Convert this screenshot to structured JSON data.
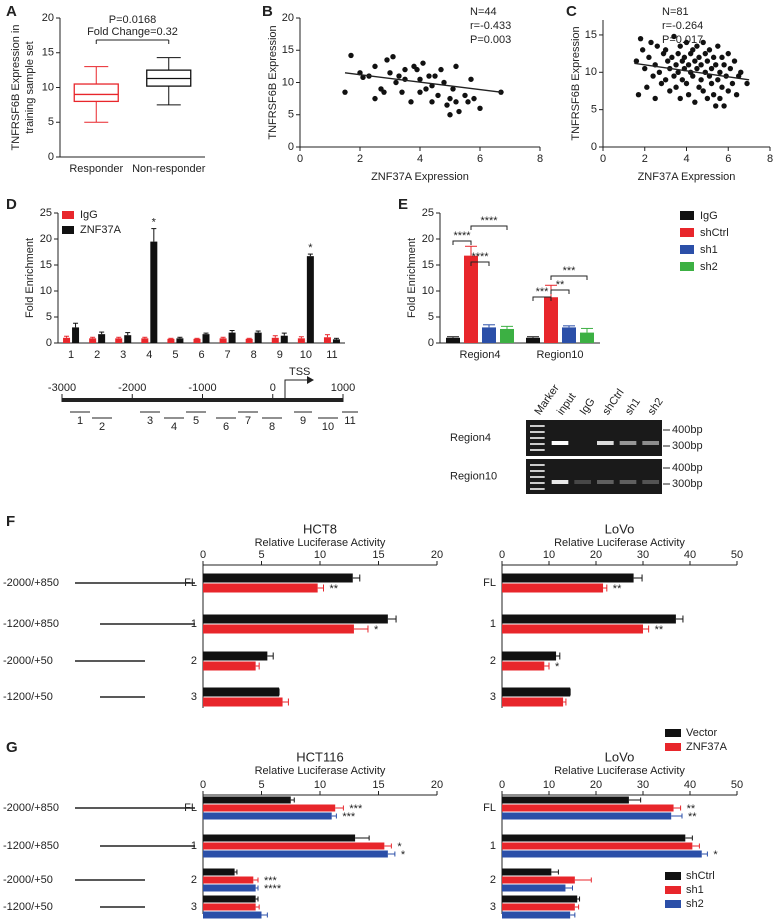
{
  "chart_data": [
    {
      "type": "box",
      "panel": "A",
      "ylabel": [
        "TNFRSF6B Expression in",
        "training sample set"
      ],
      "annotations": [
        "P=0.0168",
        "Fold Change=0.32"
      ],
      "categories": [
        "Responder",
        "Non-responder"
      ],
      "colors": [
        "#e8262b",
        "#111111"
      ],
      "min": [
        5,
        7.5
      ],
      "q1": [
        8,
        10.2
      ],
      "median": [
        9,
        11.3
      ],
      "q3": [
        10.5,
        12.5
      ],
      "max": [
        13,
        14.3
      ],
      "ylim": [
        0,
        20
      ],
      "yticks": [
        0,
        5,
        10,
        15,
        20
      ]
    },
    {
      "type": "scatter",
      "panel": "B",
      "xlabel": "ZNF37A Expression",
      "ylabel": "TNFRSF6B Expression",
      "stats": [
        "N=44",
        "r=-0.433",
        "P=0.003"
      ],
      "x": [
        1.5,
        1.7,
        2,
        2.1,
        2.3,
        2.5,
        2.5,
        2.7,
        2.8,
        2.9,
        3,
        3.1,
        3.2,
        3.3,
        3.4,
        3.5,
        3.5,
        3.7,
        3.8,
        3.9,
        4,
        4,
        4.1,
        4.2,
        4.3,
        4.4,
        4.4,
        4.5,
        4.6,
        4.7,
        4.8,
        4.9,
        5,
        5,
        5.1,
        5.2,
        5.2,
        5.3,
        5.5,
        5.6,
        5.7,
        5.8,
        6,
        6.7
      ],
      "values": [
        8.5,
        14.2,
        11.5,
        10.8,
        11,
        7.5,
        12.5,
        9,
        8.5,
        13.5,
        11.5,
        14,
        10,
        11,
        8.5,
        12,
        10.5,
        7,
        12.5,
        12,
        8.5,
        10.5,
        13,
        9,
        11,
        7,
        9.5,
        11,
        8,
        12,
        10,
        6.5,
        7.5,
        5,
        9,
        12.5,
        7,
        5.5,
        8,
        7,
        10.5,
        7.5,
        6,
        8.5
      ],
      "fit_x": [
        1.5,
        6.7
      ],
      "fit_y": [
        11.5,
        8.5
      ],
      "xlim": [
        0,
        8
      ],
      "xticks": [
        0,
        2,
        4,
        6,
        8
      ],
      "ylim": [
        0,
        20
      ],
      "yticks": [
        0,
        5,
        10,
        15,
        20
      ]
    },
    {
      "type": "scatter",
      "panel": "C",
      "xlabel": "ZNF37A Expression",
      "ylabel": "TNFRSF6B Expression",
      "stats": [
        "N=81",
        "r=-0.264",
        "P=0.017"
      ],
      "x": [
        1.6,
        1.7,
        1.8,
        1.9,
        2,
        2.1,
        2.2,
        2.3,
        2.4,
        2.5,
        2.5,
        2.6,
        2.7,
        2.8,
        2.9,
        3,
        3,
        3.1,
        3.2,
        3.2,
        3.3,
        3.4,
        3.4,
        3.5,
        3.5,
        3.6,
        3.6,
        3.7,
        3.7,
        3.8,
        3.8,
        3.9,
        3.9,
        4,
        4,
        4.1,
        4.1,
        4.2,
        4.2,
        4.3,
        4.3,
        4.4,
        4.4,
        4.5,
        4.5,
        4.6,
        4.6,
        4.7,
        4.7,
        4.8,
        4.8,
        4.9,
        4.9,
        5,
        5,
        5.1,
        5.1,
        5.2,
        5.2,
        5.3,
        5.3,
        5.4,
        5.4,
        5.5,
        5.5,
        5.6,
        5.6,
        5.7,
        5.7,
        5.8,
        5.8,
        5.9,
        6,
        6,
        6.1,
        6.2,
        6.3,
        6.4,
        6.5,
        6.6,
        6.9
      ],
      "values": [
        11.5,
        7,
        14.5,
        13,
        10.5,
        8,
        12,
        14,
        9.5,
        11,
        6.5,
        13.5,
        10,
        8.5,
        12.5,
        9,
        13,
        11.5,
        7.5,
        10.5,
        12,
        14.8,
        9.5,
        11,
        8,
        12.5,
        10,
        13.5,
        6.5,
        11.5,
        9,
        12,
        10.5,
        14,
        8.5,
        11,
        7,
        12.5,
        10,
        13,
        9.5,
        11.5,
        6,
        10.5,
        13.5,
        8,
        12,
        9,
        11,
        14,
        7.5,
        10,
        12.5,
        6.5,
        11.5,
        9.5,
        13,
        8.5,
        10.5,
        12,
        7,
        11,
        5.5,
        9,
        13.5,
        10,
        6.5,
        12,
        8,
        11,
        5.5,
        9.5,
        12.5,
        7.5,
        10.5,
        8.5,
        11.5,
        7,
        9.5,
        10,
        8.5
      ],
      "fit_x": [
        1.5,
        7
      ],
      "fit_y": [
        11.2,
        9
      ],
      "xlim": [
        0,
        8
      ],
      "xticks": [
        0,
        2,
        4,
        6,
        8
      ],
      "ylim": [
        0,
        17
      ],
      "yticks": [
        0,
        5,
        10,
        15
      ]
    },
    {
      "type": "bar",
      "panel": "D",
      "ylabel": "Fold Enrichment",
      "categories": [
        "1",
        "2",
        "3",
        "4",
        "5",
        "6",
        "7",
        "8",
        "9",
        "10",
        "11"
      ],
      "series": [
        {
          "name": "IgG",
          "color": "#e8262b",
          "values": [
            1,
            0.9,
            0.9,
            0.9,
            0.8,
            0.8,
            0.9,
            0.8,
            1,
            0.9,
            1.1
          ],
          "errors": [
            0.3,
            0.2,
            0.2,
            0.2,
            0.1,
            0.1,
            0.2,
            0.1,
            0.4,
            0.3,
            0.5
          ]
        },
        {
          "name": "ZNF37A",
          "color": "#111111",
          "values": [
            3,
            1.7,
            1.5,
            19.5,
            0.9,
            1.7,
            2,
            2,
            1.4,
            16.7,
            0.7
          ],
          "errors": [
            0.8,
            0.4,
            0.5,
            2.5,
            0.2,
            0.2,
            0.4,
            0.3,
            0.5,
            0.4,
            0.2
          ],
          "significance": [
            null,
            null,
            null,
            "*",
            null,
            null,
            null,
            null,
            null,
            "*",
            null
          ]
        }
      ],
      "ylim": [
        0,
        25
      ],
      "yticks": [
        0,
        5,
        10,
        15,
        20,
        25
      ],
      "diagram": {
        "ruler": [
          -3000,
          -2000,
          -1000,
          0,
          1000
        ],
        "tss": "TSS"
      }
    },
    {
      "type": "bar",
      "panel": "E",
      "ylabel": "Fold Enrichment",
      "categories": [
        "Region4",
        "Region10"
      ],
      "series": [
        {
          "name": "IgG",
          "color": "#111111",
          "values": [
            1,
            1
          ],
          "errors": [
            0.2,
            0.2
          ]
        },
        {
          "name": "shCtrl",
          "color": "#e8262b",
          "values": [
            16.8,
            8.8
          ],
          "errors": [
            1.8,
            2.3
          ]
        },
        {
          "name": "sh1",
          "color": "#2b4fa8",
          "values": [
            3,
            3
          ],
          "errors": [
            0.5,
            0.3
          ]
        },
        {
          "name": "sh2",
          "color": "#3cb043",
          "values": [
            2.7,
            2
          ],
          "errors": [
            0.5,
            0.8
          ]
        }
      ],
      "comparisons": [
        "****",
        "****",
        "****",
        "***",
        "**",
        "***"
      ],
      "ylim": [
        0,
        25
      ],
      "yticks": [
        0,
        5,
        10,
        15,
        20,
        25
      ],
      "gel": {
        "lanes": [
          "Marker",
          "input",
          "IgG",
          "shCtrl",
          "sh1",
          "sh2"
        ],
        "rows": [
          "Region4",
          "Region10"
        ],
        "sizes": [
          "400bp",
          "300bp",
          "400bp",
          "300bp"
        ]
      }
    },
    {
      "type": "hbar",
      "panel": "F",
      "categories": [
        "FL",
        "1",
        "2",
        "3"
      ],
      "constructs": [
        "-2000/+850",
        "-1200/+850",
        "-2000/+50",
        "-1200/+50"
      ],
      "legend": [
        {
          "name": "Vector",
          "color": "#111111"
        },
        {
          "name": "ZNF37A",
          "color": "#e8262b"
        }
      ],
      "subplots": [
        {
          "title": "HCT8",
          "xlabel": "Relative Luciferase Activity",
          "xlim": [
            0,
            20
          ],
          "xticks": [
            0,
            5,
            10,
            15,
            20
          ],
          "series": [
            {
              "values": [
                12.8,
                15.8,
                5.5,
                6.5
              ],
              "errors": [
                0.6,
                0.7,
                0.5,
                0
              ],
              "significance": [
                null,
                null,
                null,
                null
              ]
            },
            {
              "values": [
                9.8,
                12.9,
                4.5,
                6.8
              ],
              "errors": [
                0.5,
                1.2,
                0.3,
                0.5
              ],
              "significance": [
                "**",
                "*",
                null,
                null
              ]
            }
          ]
        },
        {
          "title": "LoVo",
          "xlabel": "Relative Luciferase Activity",
          "xlim": [
            0,
            50
          ],
          "xticks": [
            0,
            10,
            20,
            30,
            40,
            50
          ],
          "series": [
            {
              "values": [
                28,
                37,
                11.5,
                14.5
              ],
              "errors": [
                1.8,
                1.5,
                0.8,
                0
              ],
              "significance": [
                null,
                null,
                null,
                null
              ]
            },
            {
              "values": [
                21.5,
                30,
                9,
                13
              ],
              "errors": [
                0.8,
                1.2,
                1,
                0.6
              ],
              "significance": [
                "**",
                "**",
                "*",
                null
              ]
            }
          ]
        }
      ]
    },
    {
      "type": "hbar",
      "panel": "G",
      "categories": [
        "FL",
        "1",
        "2",
        "3"
      ],
      "constructs": [
        "-2000/+850",
        "-1200/+850",
        "-2000/+50",
        "-1200/+50"
      ],
      "legend": [
        {
          "name": "shCtrl",
          "color": "#111111"
        },
        {
          "name": "sh1",
          "color": "#e8262b"
        },
        {
          "name": "sh2",
          "color": "#2b4fa8"
        }
      ],
      "subplots": [
        {
          "title": "HCT116",
          "xlabel": "Relative Luciferase Activity",
          "xlim": [
            0,
            20
          ],
          "xticks": [
            0,
            5,
            10,
            15,
            20
          ],
          "series": [
            {
              "values": [
                7.5,
                13,
                2.7,
                4.5
              ],
              "errors": [
                0.3,
                1.2,
                0.2,
                0.2
              ],
              "significance": [
                null,
                null,
                null,
                null
              ]
            },
            {
              "values": [
                11.3,
                15.5,
                4.3,
                4.5
              ],
              "errors": [
                0.7,
                0.6,
                0.4,
                0.3
              ],
              "significance": [
                "***",
                "*",
                "***",
                null
              ]
            },
            {
              "values": [
                11,
                15.8,
                4.5,
                5
              ],
              "errors": [
                0.4,
                0.6,
                0.2,
                0.5
              ],
              "significance": [
                "***",
                "*",
                "****",
                null
              ]
            }
          ]
        },
        {
          "title": "LoVo",
          "xlabel": "Relative Luciferase Activity",
          "xlim": [
            0,
            50
          ],
          "xticks": [
            0,
            10,
            20,
            30,
            40,
            50
          ],
          "series": [
            {
              "values": [
                27,
                39,
                10.5,
                16
              ],
              "errors": [
                2.5,
                1.5,
                1.5,
                0.5
              ],
              "significance": [
                null,
                null,
                null,
                null
              ]
            },
            {
              "values": [
                36.5,
                40.5,
                15.5,
                15.5
              ],
              "errors": [
                1.5,
                1.5,
                3.5,
                0.8
              ],
              "significance": [
                "**",
                null,
                null,
                null
              ]
            },
            {
              "values": [
                36,
                42.5,
                13.5,
                14.5
              ],
              "errors": [
                2.3,
                1.2,
                1.5,
                1
              ],
              "significance": [
                "**",
                "*",
                null,
                null
              ]
            }
          ]
        }
      ]
    }
  ]
}
